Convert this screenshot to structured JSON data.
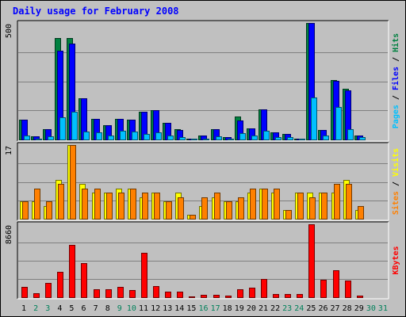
{
  "chart_data": {
    "type": "bar",
    "title": "Daily usage for February 2008",
    "days": [
      "1",
      "2",
      "3",
      "4",
      "5",
      "6",
      "7",
      "8",
      "9",
      "10",
      "11",
      "12",
      "13",
      "14",
      "15",
      "16",
      "17",
      "18",
      "19",
      "20",
      "21",
      "22",
      "23",
      "24",
      "25",
      "26",
      "27",
      "28",
      "29",
      "30",
      "31"
    ],
    "weekend_days": [
      "2",
      "3",
      "9",
      "10",
      "16",
      "17",
      "23",
      "24",
      "30",
      "31"
    ],
    "panels": [
      {
        "name": "hits-files-pages",
        "max_label": "500",
        "ylim": [
          0,
          500
        ],
        "axis_labels": [
          {
            "text": "Pages",
            "color": "#00c0ff"
          },
          {
            "text": " / ",
            "color": "#000000"
          },
          {
            "text": "Files",
            "color": "#0000ff"
          },
          {
            "text": " / ",
            "color": "#000000"
          },
          {
            "text": "Hits",
            "color": "#008040"
          }
        ],
        "series": [
          {
            "name": "Hits",
            "color": "#008040",
            "values": [
              85,
              12,
              45,
              435,
              435,
              178,
              88,
              62,
              88,
              85,
              120,
              125,
              70,
              45,
              2,
              18,
              45,
              10,
              100,
              48,
              128,
              30,
              25,
              5,
              500,
              42,
              255,
              218,
              18,
              0,
              0
            ]
          },
          {
            "name": "Files",
            "color": "#0000ff",
            "values": [
              85,
              12,
              45,
              380,
              410,
              178,
              88,
              62,
              88,
              85,
              120,
              125,
              70,
              40,
              2,
              18,
              45,
              10,
              80,
              48,
              128,
              30,
              25,
              5,
              500,
              42,
              250,
              210,
              18,
              0,
              0
            ]
          },
          {
            "name": "Pages",
            "color": "#00c0ff",
            "values": [
              18,
              5,
              12,
              95,
              120,
              35,
              30,
              18,
              38,
              35,
              25,
              32,
              18,
              10,
              1,
              5,
              12,
              3,
              28,
              18,
              38,
              10,
              10,
              2,
              180,
              18,
              140,
              45,
              10,
              0,
              0
            ]
          }
        ]
      },
      {
        "name": "visits-sites",
        "max_label": "17",
        "ylim": [
          0,
          17
        ],
        "axis_labels": [
          {
            "text": "Sites",
            "color": "#ff8000"
          },
          {
            "text": " / ",
            "color": "#000000"
          },
          {
            "text": "Visits",
            "color": "#ffff00"
          }
        ],
        "series": [
          {
            "name": "Visits",
            "color": "#ffff00",
            "values": [
              4,
              4,
              3,
              9,
              17,
              8,
              6,
              6,
              7,
              7,
              5,
              6,
              4,
              6,
              1,
              3,
              5,
              4,
              4,
              6,
              7,
              6,
              2,
              6,
              6,
              6,
              6,
              9,
              2,
              0,
              0
            ]
          },
          {
            "name": "Sites",
            "color": "#ff8000",
            "values": [
              4,
              7,
              4,
              8,
              17,
              7,
              7,
              6,
              6,
              7,
              6,
              6,
              4,
              5,
              1,
              5,
              6,
              4,
              5,
              7,
              7,
              7,
              2,
              6,
              5,
              6,
              8,
              8,
              3,
              0,
              0
            ]
          }
        ]
      },
      {
        "name": "kbytes",
        "max_label": "8660",
        "ylim": [
          0,
          8660
        ],
        "axis_labels": [
          {
            "text": "KBytes",
            "color": "#ff0000"
          }
        ],
        "series": [
          {
            "name": "KBytes",
            "color": "#ff0000",
            "values": [
              1200,
              500,
              1650,
              3000,
              6200,
              4050,
              900,
              900,
              1200,
              850,
              5300,
              1300,
              650,
              620,
              100,
              320,
              320,
              180,
              950,
              1150,
              2150,
              400,
              350,
              350,
              8660,
              2100,
              3200,
              2000,
              180,
              0,
              0
            ]
          }
        ]
      }
    ]
  }
}
